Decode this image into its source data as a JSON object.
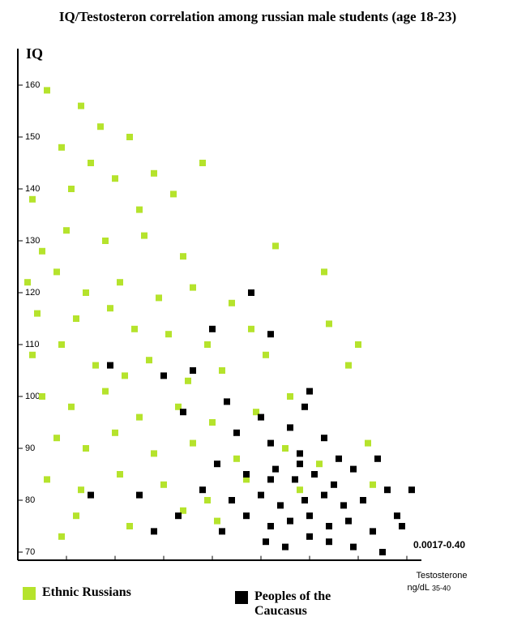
{
  "chart_data": {
    "type": "scatter",
    "title": "IQ/Testosteron correlation among russian male students (age 18-23)",
    "y_label": "IQ",
    "x_label": "Testosterone",
    "x_unit": "ng/dL",
    "x_unit_range": "35-40",
    "x_annotation": "0.0017-0.40",
    "xlim": [
      0,
      8.3
    ],
    "xticks": [
      1,
      2,
      3,
      4,
      5,
      6,
      7,
      8
    ],
    "ylim": [
      68.5,
      166.5
    ],
    "yticks": [
      70,
      80,
      90,
      100,
      110,
      120,
      130,
      140,
      150,
      160
    ],
    "legend": "bottom",
    "series": [
      {
        "name": "Ethnic Russians",
        "color": "#b5e32c",
        "x": [
          0.6,
          1.3,
          1.7,
          0.9,
          2.3,
          1.5,
          2.0,
          2.8,
          3.8,
          0.3,
          1.1,
          2.5,
          3.2,
          0.5,
          1.0,
          1.8,
          2.6,
          3.4,
          5.3,
          0.2,
          0.8,
          1.4,
          2.1,
          2.9,
          3.6,
          4.4,
          0.4,
          1.2,
          1.9,
          2.4,
          3.1,
          3.9,
          4.8,
          6.3,
          6.4,
          0.3,
          0.9,
          1.6,
          2.2,
          2.7,
          3.5,
          4.2,
          5.1,
          0.5,
          1.1,
          1.8,
          2.5,
          3.3,
          4.0,
          4.9,
          5.6,
          7.0,
          6.8,
          0.8,
          1.4,
          2.0,
          2.8,
          3.6,
          4.5,
          5.5,
          6.2,
          7.2,
          0.6,
          1.3,
          2.1,
          3.0,
          3.9,
          4.7,
          5.8,
          1.2,
          2.3,
          3.4,
          4.1,
          0.9,
          7.3
        ],
        "y": [
          159,
          156,
          152,
          148,
          150,
          145,
          142,
          143,
          145,
          138,
          140,
          136,
          139,
          128,
          132,
          130,
          131,
          127,
          129,
          122,
          124,
          120,
          122,
          119,
          121,
          118,
          116,
          115,
          117,
          113,
          112,
          110,
          113,
          124,
          114,
          108,
          110,
          106,
          104,
          107,
          103,
          105,
          108,
          100,
          98,
          101,
          96,
          98,
          95,
          97,
          100,
          110,
          106,
          92,
          90,
          93,
          89,
          91,
          88,
          90,
          87,
          91,
          84,
          82,
          85,
          83,
          80,
          84,
          82,
          77,
          75,
          78,
          76,
          73,
          83
        ]
      },
      {
        "name": "Peoples of the Caucasus",
        "color": "#000000",
        "x": [
          1.9,
          3.0,
          3.4,
          4.0,
          4.8,
          5.2,
          3.6,
          4.3,
          5.0,
          5.6,
          6.0,
          5.9,
          4.5,
          5.2,
          5.8,
          6.3,
          6.6,
          4.1,
          4.7,
          5.3,
          5.7,
          6.1,
          6.5,
          6.9,
          7.4,
          3.8,
          4.4,
          5.0,
          5.4,
          5.9,
          6.3,
          6.7,
          7.1,
          7.6,
          8.1,
          4.7,
          5.2,
          5.6,
          6.0,
          6.4,
          6.8,
          7.3,
          7.8,
          5.1,
          5.5,
          6.0,
          6.4,
          6.9,
          7.5,
          7.9,
          1.5,
          2.5,
          3.3,
          2.8,
          4.2,
          5.2,
          5.8
        ],
        "y": [
          106,
          104,
          97,
          113,
          120,
          112,
          105,
          99,
          96,
          94,
          101,
          98,
          93,
          91,
          89,
          92,
          88,
          87,
          85,
          86,
          84,
          85,
          83,
          86,
          88,
          82,
          80,
          81,
          79,
          80,
          81,
          79,
          80,
          82,
          82,
          77,
          75,
          76,
          77,
          75,
          76,
          74,
          77,
          72,
          71,
          73,
          72,
          71,
          70,
          75,
          81,
          81,
          77,
          74,
          74,
          84,
          87
        ]
      }
    ]
  }
}
